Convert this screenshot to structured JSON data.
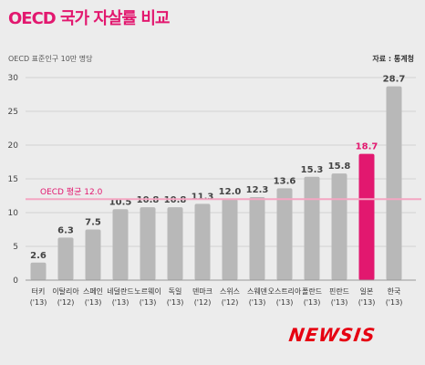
{
  "header": {
    "title": "OECD 국가 자살률 비교",
    "unit": "OECD 표준인구 10만 명당",
    "source": "자료 : 통계청"
  },
  "branding": {
    "logo_text": "NEWSIS"
  },
  "colors": {
    "background": "#ececec",
    "bar": "#b8b8b8",
    "highlight": "#e2186f",
    "avg_line": "#f4a6c2",
    "title": "#e2186f",
    "logo": "#e60012"
  },
  "chart_data": {
    "type": "bar",
    "categories": [
      "터키",
      "이탈리아",
      "스페인",
      "네덜란드",
      "노르웨이",
      "독일",
      "덴마크",
      "스위스",
      "스웨덴",
      "오스트리아",
      "폴란드",
      "핀란드",
      "일본",
      "한국"
    ],
    "years": [
      "('13)",
      "('12)",
      "('13)",
      "('13)",
      "('13)",
      "('13)",
      "('12)",
      "('12)",
      "('13)",
      "('13)",
      "('13)",
      "('13)",
      "('13)",
      "('13)"
    ],
    "values": [
      2.6,
      6.3,
      7.5,
      10.5,
      10.8,
      10.8,
      11.3,
      12.0,
      12.3,
      13.6,
      15.3,
      15.8,
      18.7,
      28.7
    ],
    "value_labels": [
      "2.6",
      "6.3",
      "7.5",
      "10.5",
      "10.8",
      "10.8",
      "11.3",
      "12.0",
      "12.3",
      "13.6",
      "15.3",
      "15.8",
      "18.7",
      "28.7"
    ],
    "highlight_index": 12,
    "ylim": [
      0,
      30
    ],
    "yticks": [
      0,
      5,
      10,
      15,
      20,
      25,
      30
    ],
    "ytick_labels": [
      "0",
      "5",
      "10",
      "15",
      "20",
      "25",
      "30"
    ],
    "average": {
      "label": "OECD 평균 12.0",
      "value": 12.0
    },
    "grid": true,
    "legend": "none"
  }
}
